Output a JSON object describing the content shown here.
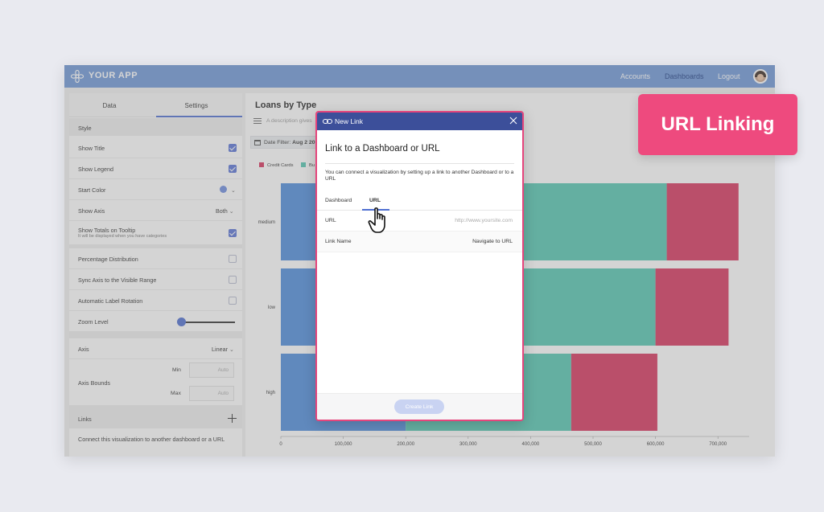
{
  "app": {
    "title": "YOUR APP",
    "nav": [
      "Accounts",
      "Dashboards",
      "Logout"
    ],
    "active_nav": "Dashboards",
    "brand_color": "#6f98d8"
  },
  "left_panel": {
    "tabs": [
      "Data",
      "Settings"
    ],
    "active_tab": "Settings",
    "style_header": "Style",
    "show_title": {
      "label": "Show Title",
      "checked": true
    },
    "show_legend": {
      "label": "Show Legend",
      "checked": true
    },
    "start_color": {
      "label": "Start Color",
      "color": "#6f8ee0"
    },
    "show_axis": {
      "label": "Show Axis",
      "value": "Both"
    },
    "show_totals": {
      "label": "Show Totals on Tooltip",
      "sub": "It will be displayed when you have categories",
      "checked": true
    },
    "percentage": {
      "label": "Percentage Distribution",
      "checked": false
    },
    "sync_axis": {
      "label": "Sync Axis to the Visible Range",
      "checked": false
    },
    "auto_rotation": {
      "label": "Automatic Label Rotation",
      "checked": false
    },
    "zoom_level": {
      "label": "Zoom Level",
      "value": 0
    },
    "axis": {
      "label": "Axis",
      "value": "Linear"
    },
    "axis_bounds": {
      "label": "Axis Bounds",
      "min_label": "Min",
      "max_label": "Max",
      "min_placeholder": "Auto",
      "max_placeholder": "Auto"
    },
    "links": {
      "label": "Links",
      "description": "Connect this visualization to another dashboard or a URL"
    }
  },
  "main": {
    "title": "Loans by Type",
    "description_placeholder": "A description gives",
    "date_filter": {
      "label": "Date Filter:",
      "value": "Aug 2 20"
    }
  },
  "chart_data": {
    "type": "bar",
    "orientation": "horizontal",
    "stacked": true,
    "categories": [
      "medium",
      "low",
      "high"
    ],
    "series": [
      {
        "name": "",
        "color": "#4f8edc",
        "values": [
          200000,
          200000,
          200000
        ]
      },
      {
        "name": "",
        "color": "#55c7b2",
        "values": [
          418000,
          400000,
          265000
        ]
      },
      {
        "name": "Credit Cards",
        "color": "#d8365f",
        "values": [
          115000,
          117000,
          138000
        ]
      }
    ],
    "legend_visible": [
      "Credit Cards",
      "Bu"
    ],
    "xlim": [
      0,
      750000
    ],
    "xticks": [
      0,
      100000,
      200000,
      300000,
      400000,
      500000,
      600000,
      700000
    ],
    "xtick_labels": [
      "0",
      "100,000",
      "200,000",
      "300,000",
      "400,000",
      "500,000",
      "600,000",
      "700,000"
    ],
    "legend_position": "top-left",
    "grid": false
  },
  "modal": {
    "header": "New Link",
    "title": "Link to a Dashboard or URL",
    "description": "You can connect a visualization by setting up a link to another Dashboard or to a URL",
    "tabs": [
      "Dashboard",
      "URL"
    ],
    "active_tab": "URL",
    "url_label": "URL",
    "url_placeholder": "http://www.yoursite.com",
    "link_name_label": "Link Name",
    "link_name_value": "Navigate to URL",
    "create_button": "Create Link"
  },
  "badge": {
    "text": "URL Linking",
    "color": "#ee4a7e"
  }
}
